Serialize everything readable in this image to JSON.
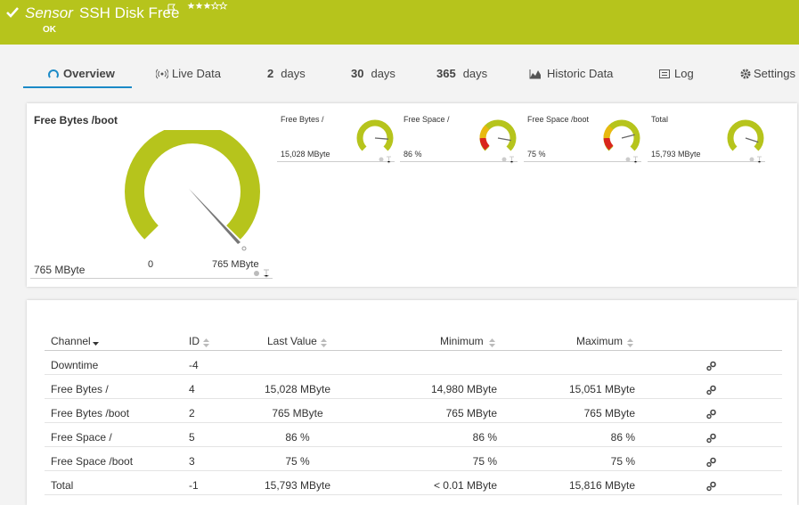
{
  "header": {
    "title_prefix": "Sensor",
    "title": "SSH Disk Free",
    "status": "OK"
  },
  "tabs": [
    {
      "label": "Overview"
    },
    {
      "label": "Live Data"
    },
    {
      "number": "2",
      "label": "days"
    },
    {
      "number": "30",
      "label": "days"
    },
    {
      "number": "365",
      "label": "days"
    },
    {
      "label": "Historic Data"
    },
    {
      "label": "Log"
    },
    {
      "label": "Settings"
    }
  ],
  "gauge": {
    "title": "Free Bytes /boot",
    "value": "765 MByte",
    "min": "0",
    "max": "765 MByte"
  },
  "mini_gauges": [
    {
      "name": "Free Bytes /",
      "value": "15,028 MByte"
    },
    {
      "name": "Free Space /",
      "value": "86 %"
    },
    {
      "name": "Free Space /boot",
      "value": "75 %"
    },
    {
      "name": "Total",
      "value": "15,793 MByte"
    }
  ],
  "table": {
    "columns": [
      "Channel",
      "ID",
      "Last Value",
      "Minimum",
      "Maximum"
    ],
    "rows": [
      [
        "Downtime",
        "-4",
        null,
        null,
        null
      ],
      [
        "Free Bytes /",
        "4",
        "15,028 MByte",
        "14,980 MByte",
        "15,051 MByte"
      ],
      [
        "Free Bytes /boot",
        "2",
        "765 MByte",
        "765 MByte",
        "765 MByte"
      ],
      [
        "Free Space /",
        "5",
        "86 %",
        "86 %",
        "86 %"
      ],
      [
        "Free Space /boot",
        "3",
        "75 %",
        "75 %",
        "75 %"
      ],
      [
        "Total",
        "-1",
        "15,793 MByte",
        "< 0.01 MByte",
        "15,816 MByte"
      ]
    ]
  }
}
